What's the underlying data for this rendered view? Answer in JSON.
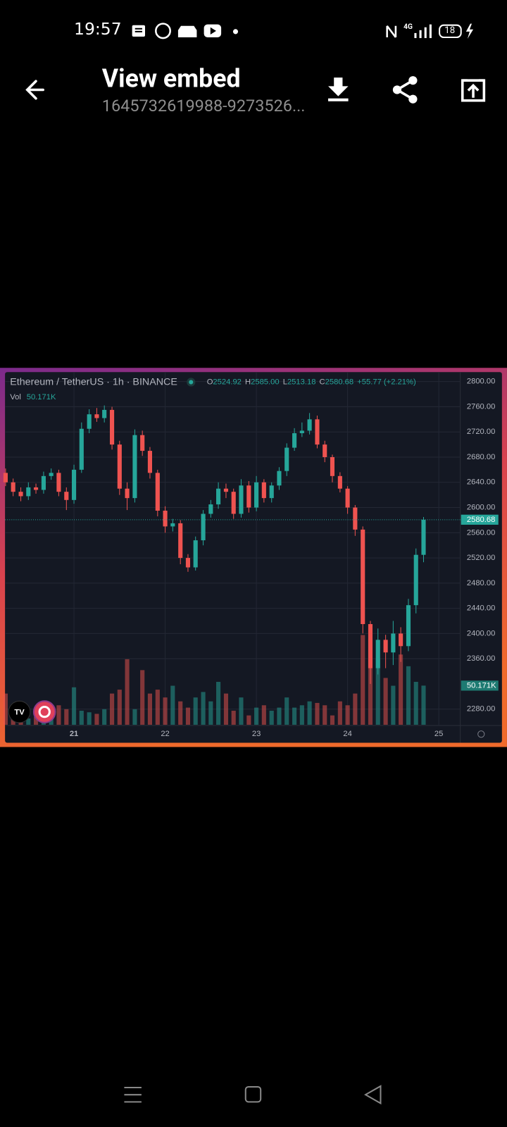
{
  "status_bar": {
    "time": "19:57",
    "network": "4G",
    "battery": "18"
  },
  "app_bar": {
    "title": "View embed",
    "subtitle": "1645732619988-9273526..."
  },
  "chart_data": {
    "type": "candlestick",
    "title": "Ethereum / TetherUS · 1h · BINANCE",
    "ohlc_letters": [
      "O",
      "H",
      "L",
      "C"
    ],
    "last_bar_labels": [
      "2524.92",
      "2585.00",
      "2513.18",
      "2580.68"
    ],
    "change": "+55.77 (+2.21%)",
    "volume_title": "Vol",
    "last_volume_label": "50.171K",
    "up_color": "#26a69a",
    "down_color": "#ef5350",
    "grid": true,
    "xlim": [
      20.244,
      25.236
    ],
    "xticks": [
      21,
      22,
      23,
      24,
      25
    ],
    "ylim": [
      2254,
      2815
    ],
    "yticks": [
      {
        "value": 2800,
        "label": "2800.00"
      },
      {
        "value": 2760,
        "label": "2760.00"
      },
      {
        "value": 2720,
        "label": "2720.00"
      },
      {
        "value": 2680,
        "label": "2680.00"
      },
      {
        "value": 2640,
        "label": "2640.00"
      },
      {
        "value": 2600,
        "label": "2600.00"
      },
      {
        "value": 2560,
        "label": "2560.00"
      },
      {
        "value": 2520,
        "label": "2520.00"
      },
      {
        "value": 2480,
        "label": "2480.00"
      },
      {
        "value": 2440,
        "label": "2440.00"
      },
      {
        "value": 2400,
        "label": "2400.00"
      },
      {
        "value": 2360,
        "label": "2360.00"
      },
      {
        "value": 2280,
        "label": "2280.00"
      }
    ],
    "x": [
      20.25,
      20.333,
      20.417,
      20.5,
      20.583,
      20.667,
      20.75,
      20.833,
      20.917,
      21,
      21.083,
      21.167,
      21.25,
      21.333,
      21.417,
      21.5,
      21.583,
      21.667,
      21.75,
      21.833,
      21.917,
      22,
      22.083,
      22.167,
      22.25,
      22.333,
      22.417,
      22.5,
      22.583,
      22.667,
      22.75,
      22.833,
      22.917,
      23,
      23.083,
      23.167,
      23.25,
      23.333,
      23.417,
      23.5,
      23.583,
      23.667,
      23.75,
      23.833,
      23.917,
      24,
      24.083,
      24.167,
      24.25,
      24.333,
      24.417,
      24.5,
      24.583,
      24.667,
      24.75,
      24.833
    ],
    "open": [
      2655,
      2640,
      2625,
      2618,
      2632,
      2628,
      2650,
      2655,
      2625,
      2612,
      2660,
      2725,
      2748,
      2742,
      2755,
      2700,
      2630,
      2615,
      2715,
      2690,
      2655,
      2595,
      2570,
      2575,
      2520,
      2505,
      2548,
      2590,
      2605,
      2630,
      2625,
      2590,
      2635,
      2600,
      2640,
      2615,
      2635,
      2658,
      2695,
      2718,
      2722,
      2740,
      2700,
      2680,
      2650,
      2630,
      2600,
      2565,
      2415,
      2345,
      2390,
      2370,
      2400,
      2380,
      2445,
      2524.92
    ],
    "high": [
      2662,
      2646,
      2632,
      2640,
      2638,
      2657,
      2662,
      2660,
      2632,
      2668,
      2735,
      2756,
      2758,
      2762,
      2760,
      2706,
      2640,
      2724,
      2722,
      2696,
      2660,
      2602,
      2582,
      2580,
      2526,
      2554,
      2596,
      2612,
      2640,
      2638,
      2630,
      2645,
      2642,
      2650,
      2645,
      2640,
      2664,
      2702,
      2726,
      2735,
      2750,
      2746,
      2706,
      2684,
      2656,
      2634,
      2604,
      2570,
      2420,
      2408,
      2398,
      2420,
      2410,
      2455,
      2535,
      2585
    ],
    "low": [
      2634,
      2618,
      2610,
      2612,
      2622,
      2622,
      2644,
      2618,
      2596,
      2606,
      2655,
      2718,
      2736,
      2735,
      2692,
      2620,
      2596,
      2608,
      2682,
      2646,
      2586,
      2560,
      2562,
      2510,
      2498,
      2500,
      2540,
      2584,
      2598,
      2615,
      2582,
      2584,
      2592,
      2594,
      2608,
      2608,
      2628,
      2650,
      2690,
      2712,
      2716,
      2694,
      2672,
      2640,
      2624,
      2590,
      2555,
      2400,
      2320,
      2335,
      2345,
      2350,
      2355,
      2372,
      2432,
      2513.18
    ],
    "close": [
      2640,
      2625,
      2618,
      2632,
      2628,
      2650,
      2655,
      2625,
      2612,
      2660,
      2725,
      2748,
      2742,
      2755,
      2700,
      2630,
      2615,
      2715,
      2690,
      2655,
      2595,
      2570,
      2575,
      2520,
      2505,
      2548,
      2590,
      2605,
      2630,
      2625,
      2590,
      2635,
      2600,
      2640,
      2615,
      2635,
      2658,
      2695,
      2718,
      2722,
      2740,
      2700,
      2680,
      2650,
      2630,
      2600,
      2565,
      2415,
      2345,
      2390,
      2370,
      2400,
      2380,
      2445,
      2524.92,
      2580.68
    ],
    "volume": [
      40,
      10,
      12,
      8,
      10,
      12,
      8,
      25,
      20,
      48,
      18,
      16,
      14,
      20,
      40,
      45,
      84,
      20,
      70,
      40,
      45,
      35,
      50,
      30,
      22,
      35,
      42,
      30,
      55,
      40,
      18,
      35,
      12,
      22,
      25,
      18,
      22,
      35,
      22,
      25,
      30,
      28,
      25,
      12,
      30,
      25,
      40,
      115,
      110,
      85,
      60,
      50,
      90,
      75,
      55,
      50.171
    ]
  }
}
